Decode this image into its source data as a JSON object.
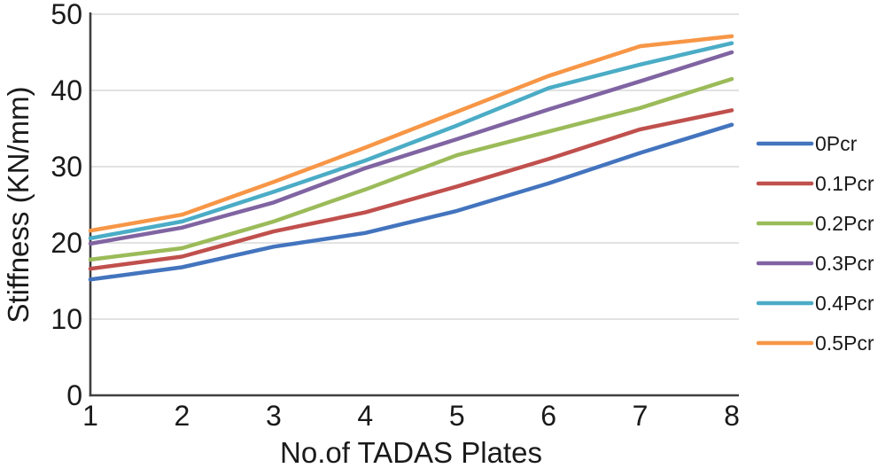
{
  "chart_data": {
    "type": "line",
    "title": "",
    "xlabel": "No.of TADAS Plates",
    "ylabel": "Stiffness (KN/mm)",
    "x": [
      1,
      2,
      3,
      4,
      5,
      6,
      7,
      8
    ],
    "xlim": [
      1,
      8
    ],
    "ylim": [
      0,
      50
    ],
    "yticks": [
      0,
      10,
      20,
      30,
      40,
      50
    ],
    "grid": "horizontal",
    "legend_position": "right",
    "series": [
      {
        "name": "0Pcr",
        "color": "#4374be",
        "values": [
          15.2,
          16.8,
          19.5,
          21.3,
          24.2,
          27.8,
          31.8,
          35.5
        ]
      },
      {
        "name": "0.1Pcr",
        "color": "#c0504d",
        "values": [
          16.6,
          18.2,
          21.5,
          24.0,
          27.4,
          31.0,
          34.9,
          37.4
        ]
      },
      {
        "name": "0.2Pcr",
        "color": "#9bbb59",
        "values": [
          17.8,
          19.3,
          22.8,
          27.0,
          31.5,
          34.6,
          37.7,
          41.5
        ]
      },
      {
        "name": "0.3Pcr",
        "color": "#8064a2",
        "values": [
          19.9,
          22.0,
          25.3,
          29.8,
          33.6,
          37.5,
          41.2,
          45.0
        ]
      },
      {
        "name": "0.4Pcr",
        "color": "#4bacc6",
        "values": [
          20.6,
          22.8,
          26.7,
          30.8,
          35.4,
          40.3,
          43.4,
          46.2
        ]
      },
      {
        "name": "0.5Pcr",
        "color": "#f79646",
        "values": [
          21.6,
          23.7,
          28.0,
          32.5,
          37.2,
          41.9,
          45.8,
          47.1
        ]
      }
    ],
    "colors": {
      "background": "#ffffff",
      "gridline": "#d9d9d9",
      "axis": "#3f3f3f",
      "text": "#1a1a1a"
    }
  }
}
